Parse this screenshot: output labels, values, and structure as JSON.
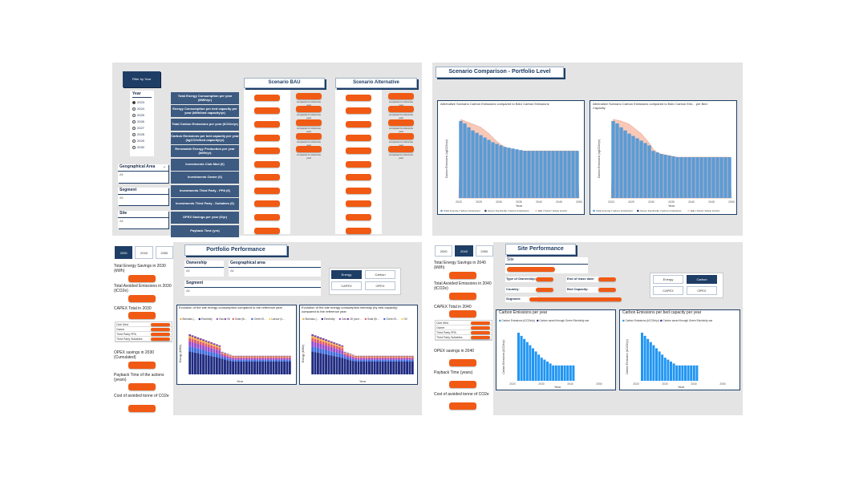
{
  "dashboard_bau": {
    "filter_button": "Filter by Year",
    "year_label": "Year",
    "years": [
      "2023",
      "2024",
      "2025",
      "2026",
      "2027",
      "2028",
      "2029",
      "2030"
    ],
    "selected_year": "2023",
    "geo_label": "Geographical Area",
    "segment_label": "Segment",
    "site_label": "Site",
    "all": "All",
    "scenario_bau": "Scenario BAU",
    "scenario_alt": "Scenario Alternative",
    "rows": [
      "Total Energy Consumption per year (MWh/yr)",
      "Energy Consumption per bed capacity per year (kWh/bed capacity/yr)",
      "Total Carbon Emissions per year (tCO2e/yr)",
      "Carbon Emissions per bed capacity per year (kgCO2e/bed capacity/yr)",
      "Renewable Energy Production per year (kWh/yr)",
      "Investments Club Med (€)",
      "Investments Owner (€)",
      "Investments Third Party - PPA (€)",
      "Investments Third Party - Suitables (€)",
      "OPEX Savings per year (€/yr)",
      "Payback Time (yrs)"
    ],
    "compared_note": "compared to reference year"
  },
  "scenario_comparison": {
    "title": "Scenario Comparison - Portfolio Level",
    "chart1_title": "Alternative Scenario Carbon Emissions compared to BAU Carbon Emissions",
    "chart2_title": "Alternative Scenario Carbon Emissions compared to BAU Carbon Emi... per Bed Capacity",
    "ylabel1": "Carbon Emissions (kgCO2e/yr)",
    "ylabel2": "Carbon Emissions (kgCO2e/yr)",
    "xlabel": "Year",
    "ticks": [
      "2020",
      "2025",
      "2030",
      "2035",
      "2040",
      "2045",
      "2050"
    ],
    "legend1": [
      "Total Energy Carbon Emissions",
      "Green Electricity Carbon Emissions",
      "BAU Total Carbon Emiss..."
    ],
    "legend2": [
      "Total Energy Carbon Emissions",
      "Green Electricity Carbon Emissions",
      "BAU Total Carbon Emiss..."
    ]
  },
  "portfolio_performance": {
    "title": "Portfolio Performance",
    "years": [
      "2030",
      "2040",
      "2050"
    ],
    "ownership_label": "Ownership",
    "geo_label": "Geographical area",
    "segment_label": "Segment",
    "all": "All",
    "toggles": [
      "Energy",
      "Carbon",
      "CAPEX",
      "OPEX"
    ],
    "kpis": [
      "Total Energy Savings in 2030 (kWh)",
      "Total Avoided Emissions in 2030 (tCO2e)",
      "CAPEX Total in 2030",
      "OPEX savings in 2030 (Cumulated)",
      "Payback Time of the actions (years)",
      "Cost of avoided tonne of CO2e"
    ],
    "capex_rows": [
      "Club Med",
      "Owner",
      "Third Party PPA",
      "Third Party Suitables"
    ],
    "chart1_title": "Evolution of the site energy consumption compared to the reference year",
    "chart2_title": "Evolution of the site energy consumption intensity (by bed capacity) compared to the reference year",
    "legend": [
      "Biomass (...",
      "Electricity",
      "Gas",
      "Oil",
      "Solar (th...",
      "Green El...",
      "Labour (s..."
    ],
    "legend2": [
      "Biomass (...",
      "Electricity",
      "Gas",
      "Oil (com...",
      "Solar (th...",
      "Green El...",
      "Oil"
    ],
    "ylabel1": "Energy (MWh)",
    "ylabel2": "Energy (MWh)",
    "xlabel": "Year"
  },
  "site_performance": {
    "title": "Site Performance",
    "years": [
      "2030",
      "2040",
      "2050"
    ],
    "site_label": "Site",
    "info_labels": [
      "Type of Ownership:",
      "End of lease date:",
      "Country:",
      "Bed Capacity:",
      "Segment:"
    ],
    "toggles": [
      "Energy",
      "Carbon",
      "CAPEX",
      "OPEX"
    ],
    "kpis": [
      "Total Energy Savings in 2040 (kWh)",
      "Total Avoided Emissions in 2040 (tCO2e)",
      "CAPEX Total in 2040",
      "OPEX savings in 2040",
      "Payback Time (years)",
      "Cost of avoided tonne of CO2e"
    ],
    "capex_rows": [
      "Club Med",
      "Owner",
      "Third Party PPA",
      "Third Party Suitables"
    ],
    "chart1_title": "Carbon Emissions per year",
    "chart2_title": "Carbon Emissions per bed capacity per year",
    "legend": [
      "Carbon Emissions (tCO2e/yr)",
      "Carbon saved through Green Electricity use"
    ],
    "legend2": [
      "Carbon Emissions (kCO2e/yr)",
      "Carbon saved through Green Electricity use"
    ],
    "ylabel1": "Carbon Emissions (tCO2e/yr)",
    "ylabel2": "Carbon Emissions (kCO2e/yr)",
    "xlabel": "Year",
    "ticks": [
      "2020",
      "2030",
      "2040",
      "2050"
    ]
  },
  "colors": {
    "accent": "#f05a14",
    "navy": "#1f3e66",
    "bar_blue": "#5b9bd5",
    "bau_fill": "#f8c9b8",
    "site_bar": "#2196f3"
  }
}
